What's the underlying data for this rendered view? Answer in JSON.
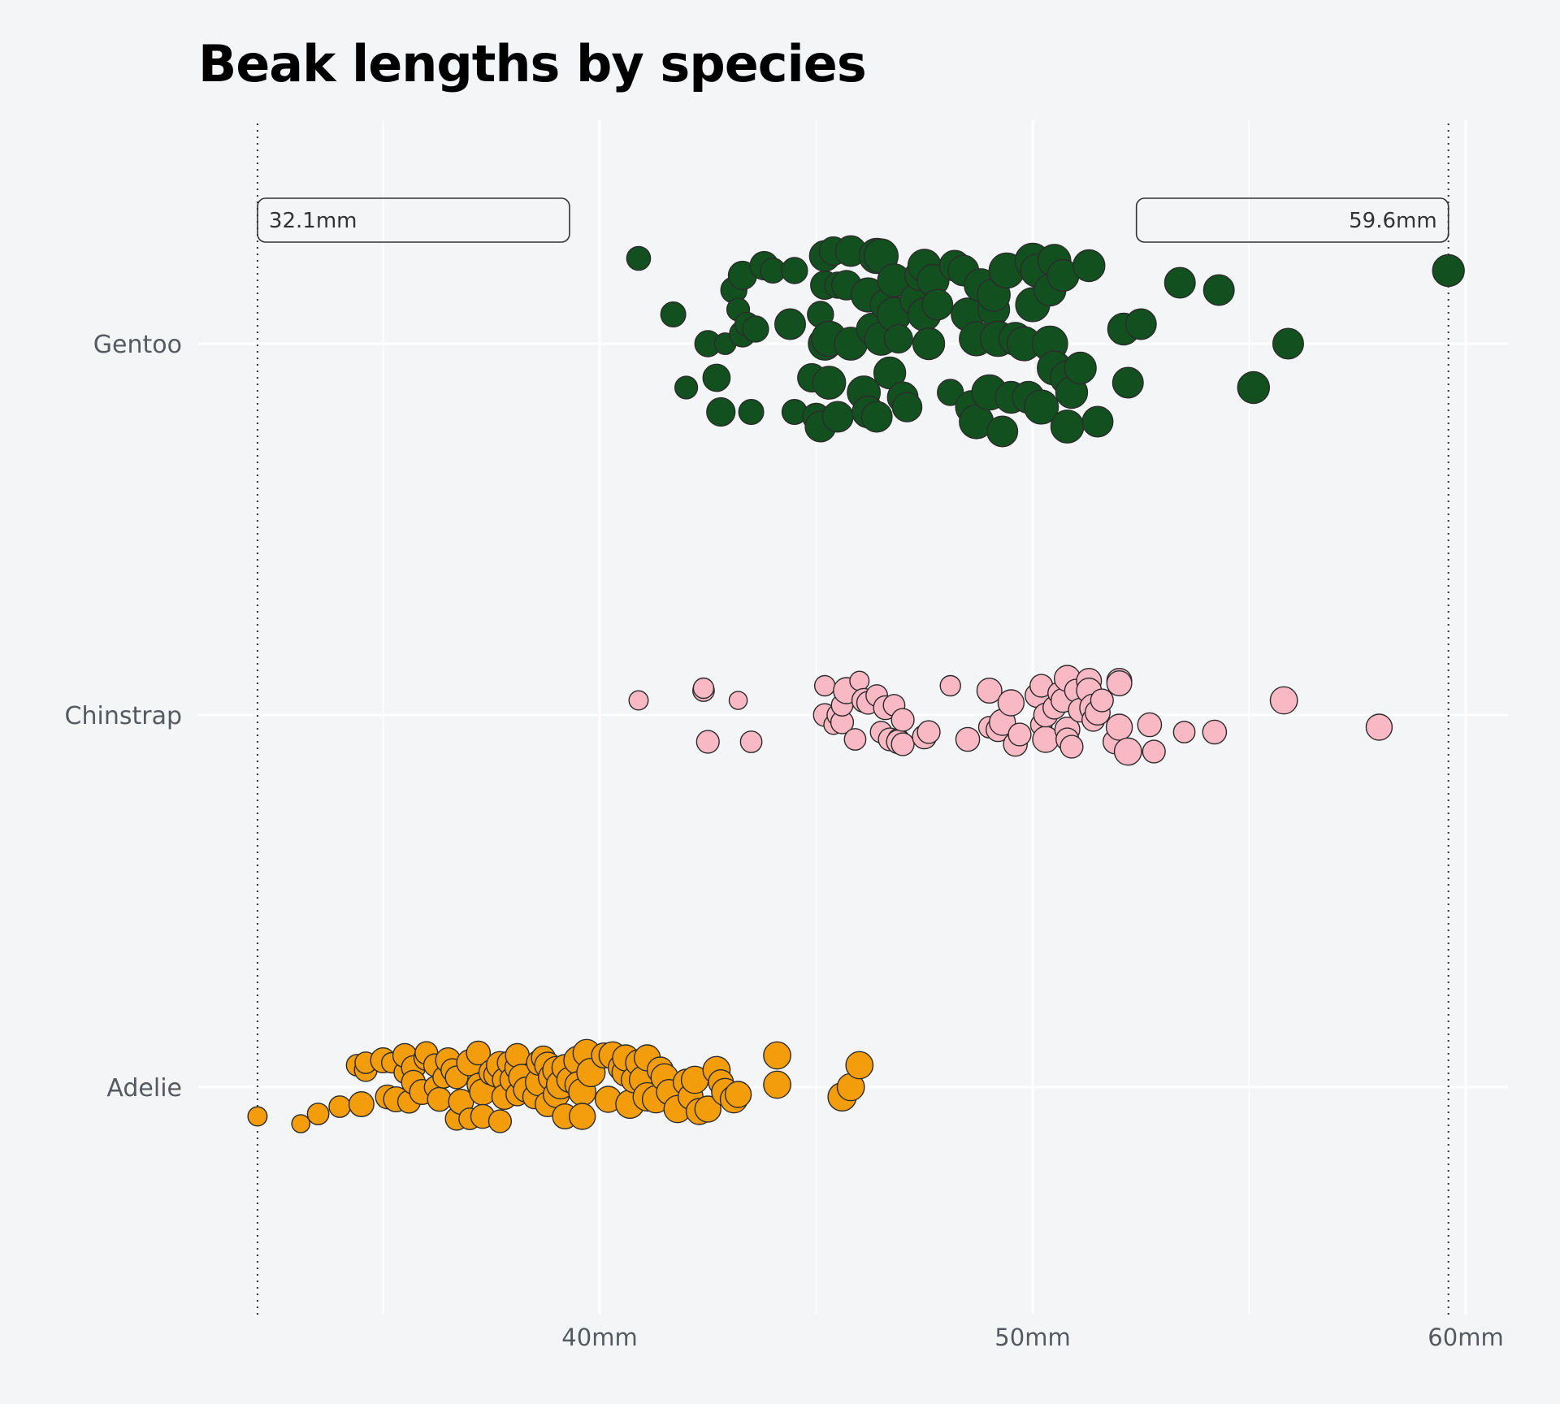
{
  "colors": {
    "background": "#f4f5f7",
    "grid": "#ffffff",
    "Gentoo": "#13501f",
    "Chinstrap": "#f8b8c4",
    "Adelie": "#f39c0c",
    "stroke": "#2b2b2b"
  },
  "chart_data": {
    "type": "scatter",
    "title": "Beak lengths by species",
    "xlabel": "",
    "ylabel": "",
    "xlim": [
      31,
      61
    ],
    "x_ticks": [
      40,
      50,
      60
    ],
    "x_tick_labels": [
      "40mm",
      "50mm",
      "60mm"
    ],
    "grid": true,
    "categories": [
      "Gentoo",
      "Chinstrap",
      "Adelie"
    ],
    "annotations": [
      {
        "text": "32.1mm",
        "x": 32.1
      },
      {
        "text": "59.6mm",
        "x": 59.6
      }
    ],
    "series": [
      {
        "name": "Gentoo",
        "x": [
          40.9,
          41.7,
          42.0,
          42.5,
          42.7,
          42.8,
          42.9,
          43.1,
          43.2,
          43.3,
          43.3,
          43.4,
          43.5,
          43.6,
          43.8,
          44.0,
          44.4,
          44.5,
          44.5,
          44.9,
          45.0,
          45.1,
          45.1,
          45.2,
          45.2,
          45.2,
          45.3,
          45.3,
          45.4,
          45.5,
          45.5,
          45.7,
          45.8,
          45.8,
          46.1,
          46.2,
          46.2,
          46.3,
          46.4,
          46.4,
          46.5,
          46.5,
          46.6,
          46.7,
          46.8,
          46.8,
          46.9,
          47.0,
          47.1,
          47.3,
          47.4,
          47.5,
          47.5,
          47.6,
          47.7,
          47.8,
          48.1,
          48.2,
          48.4,
          48.5,
          48.6,
          48.7,
          48.7,
          48.8,
          49.0,
          49.1,
          49.1,
          49.2,
          49.3,
          49.4,
          49.5,
          49.6,
          49.8,
          49.9,
          50.0,
          50.0,
          50.1,
          50.2,
          50.4,
          50.4,
          50.5,
          50.5,
          50.7,
          50.8,
          50.8,
          50.9,
          51.1,
          51.3,
          51.5,
          52.1,
          52.2,
          52.5,
          53.4,
          54.3,
          55.1,
          55.9,
          59.6
        ],
        "jitter": [
          0.35,
          0.12,
          -0.18,
          0.0,
          -0.14,
          -0.28,
          0.0,
          0.22,
          0.14,
          0.04,
          0.28,
          0.08,
          -0.28,
          0.06,
          0.32,
          0.3,
          0.08,
          -0.28,
          0.3,
          -0.14,
          -0.3,
          -0.34,
          0.12,
          0.0,
          0.24,
          0.36,
          -0.16,
          0.02,
          0.38,
          0.24,
          -0.3,
          0.24,
          0.0,
          0.38,
          -0.2,
          -0.28,
          0.2,
          0.06,
          -0.3,
          0.36,
          0.02,
          0.36,
          0.16,
          -0.12,
          0.26,
          0.12,
          0.02,
          -0.22,
          -0.26,
          0.18,
          0.28,
          0.12,
          0.32,
          0.0,
          0.26,
          0.16,
          -0.2,
          0.32,
          0.3,
          0.12,
          -0.26,
          0.02,
          -0.32,
          0.24,
          -0.2,
          0.14,
          0.2,
          0.02,
          -0.36,
          0.3,
          -0.22,
          0.02,
          0.0,
          -0.22,
          0.16,
          0.34,
          0.3,
          -0.26,
          0.0,
          0.22,
          0.34,
          -0.1,
          0.28,
          -0.14,
          -0.34,
          -0.2,
          -0.1,
          0.32,
          -0.32,
          0.06,
          -0.16,
          0.08,
          0.25,
          0.22,
          -0.18,
          0.0,
          0.3
        ],
        "size": [
          0.4,
          0.45,
          0.35,
          0.5,
          0.55,
          0.6,
          0.3,
          0.5,
          0.35,
          0.5,
          0.6,
          0.4,
          0.45,
          0.5,
          0.6,
          0.45,
          0.7,
          0.45,
          0.5,
          0.6,
          0.55,
          0.7,
          0.5,
          0.8,
          0.6,
          0.7,
          0.8,
          0.9,
          0.6,
          0.5,
          0.7,
          0.65,
          0.8,
          0.7,
          0.8,
          0.75,
          0.85,
          0.75,
          0.7,
          0.9,
          0.8,
          0.85,
          0.7,
          0.75,
          0.8,
          0.85,
          0.6,
          0.7,
          0.65,
          0.75,
          0.7,
          0.8,
          0.8,
          0.75,
          0.75,
          0.7,
          0.5,
          0.7,
          0.7,
          0.8,
          0.8,
          0.85,
          0.85,
          0.8,
          0.9,
          0.75,
          0.8,
          0.9,
          0.7,
          0.9,
          0.75,
          0.8,
          0.85,
          0.75,
          0.85,
          0.9,
          0.8,
          0.85,
          0.9,
          0.75,
          0.8,
          0.85,
          0.75,
          0.85,
          0.8,
          0.75,
          0.75,
          0.75,
          0.7,
          0.75,
          0.7,
          0.7,
          0.7,
          0.7,
          0.75,
          0.7,
          0.75
        ]
      },
      {
        "name": "Chinstrap",
        "x": [
          40.9,
          42.4,
          42.4,
          42.5,
          43.2,
          43.5,
          45.2,
          45.2,
          45.4,
          45.5,
          45.6,
          45.6,
          45.7,
          45.9,
          46.0,
          46.1,
          46.2,
          46.4,
          46.5,
          46.6,
          46.7,
          46.8,
          46.9,
          46.9,
          47.0,
          47.0,
          47.5,
          47.6,
          48.1,
          48.5,
          49.0,
          49.0,
          49.2,
          49.3,
          49.5,
          49.6,
          49.7,
          50.1,
          50.2,
          50.2,
          50.3,
          50.3,
          50.5,
          50.6,
          50.7,
          50.8,
          50.8,
          50.8,
          50.9,
          51.0,
          51.1,
          51.3,
          51.3,
          51.4,
          51.4,
          51.5,
          51.6,
          51.9,
          52.0,
          52.0,
          52.0,
          52.2,
          52.7,
          52.8,
          53.5,
          54.2,
          55.8,
          58.0
        ],
        "jitter": [
          0.06,
          0.1,
          0.11,
          -0.11,
          0.06,
          -0.11,
          0.12,
          0.0,
          -0.04,
          0.0,
          -0.03,
          0.04,
          0.1,
          -0.1,
          0.14,
          0.06,
          0.05,
          0.08,
          -0.07,
          0.03,
          -0.1,
          0.04,
          -0.1,
          -0.11,
          -0.02,
          -0.12,
          -0.09,
          -0.07,
          0.12,
          -0.1,
          -0.05,
          0.1,
          -0.06,
          -0.03,
          0.05,
          -0.12,
          -0.08,
          0.08,
          0.12,
          -0.04,
          -0.1,
          0.0,
          0.03,
          0.09,
          0.06,
          -0.06,
          0.15,
          -0.1,
          -0.13,
          0.1,
          0.02,
          0.14,
          0.1,
          0.03,
          -0.02,
          0.01,
          0.06,
          -0.11,
          -0.05,
          0.14,
          0.13,
          -0.15,
          -0.04,
          -0.15,
          -0.07,
          -0.07,
          0.06,
          -0.05
        ],
        "size": [
          0.2,
          0.3,
          0.25,
          0.35,
          0.15,
          0.3,
          0.25,
          0.35,
          0.2,
          0.3,
          0.35,
          0.3,
          0.5,
          0.3,
          0.2,
          0.4,
          0.35,
          0.3,
          0.3,
          0.4,
          0.35,
          0.3,
          0.3,
          0.4,
          0.35,
          0.35,
          0.4,
          0.35,
          0.25,
          0.4,
          0.3,
          0.45,
          0.4,
          0.5,
          0.5,
          0.4,
          0.35,
          0.4,
          0.35,
          0.3,
          0.5,
          0.4,
          0.35,
          0.3,
          0.4,
          0.45,
          0.5,
          0.35,
          0.35,
          0.35,
          0.4,
          0.45,
          0.45,
          0.55,
          0.35,
          0.45,
          0.35,
          0.4,
          0.5,
          0.45,
          0.45,
          0.55,
          0.4,
          0.35,
          0.3,
          0.4,
          0.55,
          0.5
        ]
      },
      {
        "name": "Adelie",
        "x": [
          32.1,
          33.1,
          33.5,
          34.0,
          34.4,
          34.5,
          34.6,
          34.6,
          35.0,
          35.1,
          35.2,
          35.3,
          35.5,
          35.5,
          35.6,
          35.7,
          35.7,
          35.9,
          36.0,
          36.0,
          36.2,
          36.2,
          36.3,
          36.4,
          36.5,
          36.6,
          36.7,
          36.7,
          36.8,
          37.0,
          37.0,
          37.2,
          37.2,
          37.3,
          37.3,
          37.5,
          37.6,
          37.7,
          37.7,
          37.8,
          37.8,
          37.9,
          38.0,
          38.1,
          38.1,
          38.1,
          38.2,
          38.3,
          38.5,
          38.6,
          38.6,
          38.7,
          38.8,
          38.8,
          38.9,
          39.0,
          39.0,
          39.1,
          39.2,
          39.2,
          39.3,
          39.5,
          39.5,
          39.6,
          39.6,
          39.7,
          39.8,
          40.1,
          40.2,
          40.3,
          40.5,
          40.6,
          40.6,
          40.7,
          40.8,
          40.9,
          41.0,
          41.1,
          41.1,
          41.3,
          41.4,
          41.5,
          41.6,
          41.8,
          42.0,
          42.1,
          42.2,
          42.3,
          42.5,
          42.7,
          42.8,
          42.9,
          43.1,
          43.2,
          44.1,
          44.1,
          45.6,
          45.8,
          46.0
        ],
        "jitter": [
          -0.12,
          -0.15,
          -0.11,
          -0.08,
          0.09,
          -0.07,
          0.07,
          0.1,
          0.11,
          -0.04,
          0.1,
          -0.05,
          0.06,
          0.13,
          -0.06,
          0.08,
          0.02,
          -0.02,
          0.12,
          0.14,
          0.0,
          0.09,
          -0.05,
          0.04,
          0.11,
          0.07,
          -0.13,
          0.04,
          -0.06,
          0.1,
          -0.13,
          0.01,
          0.14,
          -0.02,
          -0.12,
          0.06,
          0.05,
          0.09,
          -0.14,
          0.03,
          -0.04,
          0.1,
          0.03,
          -0.03,
          0.08,
          0.13,
          0.04,
          -0.01,
          -0.04,
          0.02,
          0.1,
          0.12,
          0.09,
          -0.07,
          0.04,
          -0.03,
          0.07,
          0.01,
          -0.12,
          0.08,
          0.03,
          0.11,
          0.01,
          -0.02,
          -0.12,
          0.14,
          0.06,
          0.13,
          -0.05,
          0.13,
          0.08,
          0.06,
          0.12,
          -0.07,
          0.03,
          0.1,
          0.03,
          -0.04,
          0.12,
          -0.05,
          0.07,
          0.04,
          -0.02,
          -0.09,
          0.02,
          -0.04,
          0.03,
          -0.1,
          -0.09,
          0.07,
          0.02,
          -0.02,
          -0.05,
          -0.03,
          0.13,
          0.01,
          -0.04,
          0.0,
          0.09
        ],
        "size": [
          0.2,
          0.15,
          0.3,
          0.3,
          0.3,
          0.45,
          0.35,
          0.3,
          0.45,
          0.4,
          0.25,
          0.45,
          0.3,
          0.4,
          0.35,
          0.4,
          0.4,
          0.45,
          0.45,
          0.35,
          0.3,
          0.35,
          0.4,
          0.3,
          0.45,
          0.35,
          0.35,
          0.35,
          0.45,
          0.5,
          0.3,
          0.35,
          0.4,
          0.5,
          0.4,
          0.45,
          0.4,
          0.55,
          0.35,
          0.4,
          0.45,
          0.35,
          0.5,
          0.35,
          0.45,
          0.4,
          0.5,
          0.45,
          0.4,
          0.55,
          0.45,
          0.4,
          0.5,
          0.45,
          0.55,
          0.5,
          0.55,
          0.6,
          0.45,
          0.5,
          0.45,
          0.6,
          0.5,
          0.55,
          0.5,
          0.55,
          0.6,
          0.45,
          0.5,
          0.55,
          0.5,
          0.55,
          0.5,
          0.6,
          0.5,
          0.5,
          0.55,
          0.6,
          0.5,
          0.55,
          0.5,
          0.55,
          0.45,
          0.55,
          0.5,
          0.45,
          0.55,
          0.5,
          0.5,
          0.55,
          0.45,
          0.55,
          0.55,
          0.5,
          0.55,
          0.55,
          0.6,
          0.55,
          0.55
        ]
      }
    ]
  }
}
